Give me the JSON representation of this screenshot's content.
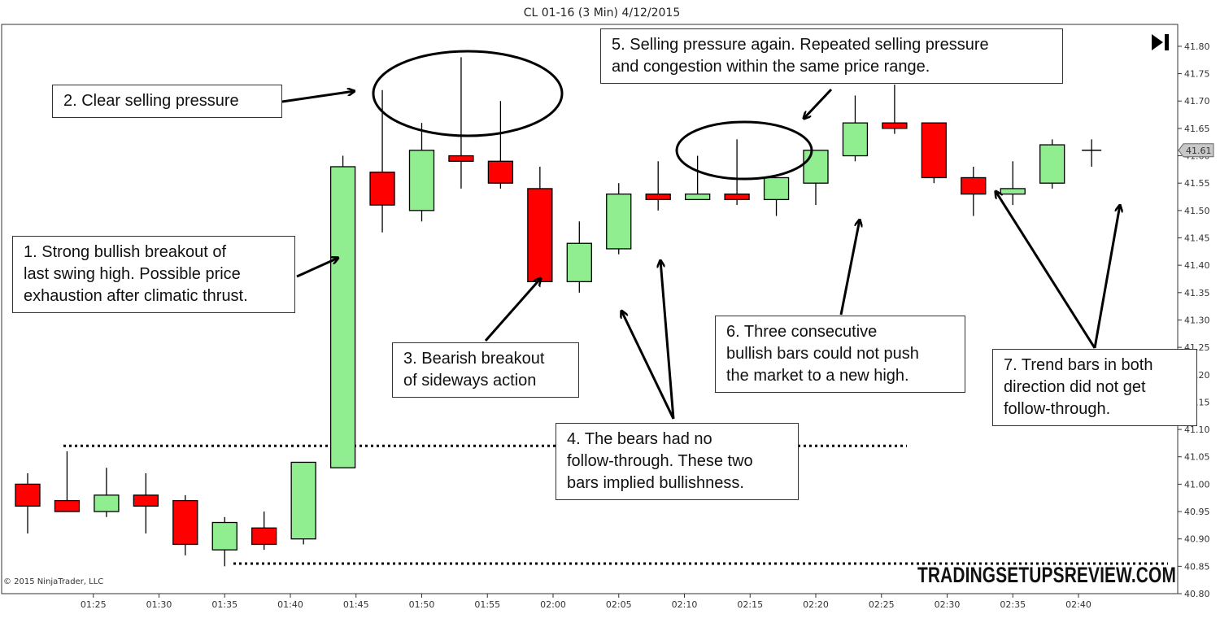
{
  "chart_data": {
    "type": "candlestick",
    "title": "CL 01-16 (3 Min)  4/12/2015",
    "ylim": [
      40.8,
      41.84
    ],
    "y_ticks": [
      "41.80",
      "41.75",
      "41.70",
      "41.65",
      "41.60",
      "41.55",
      "41.50",
      "41.45",
      "41.40",
      "41.35",
      "41.30",
      "41.25",
      "41.20",
      "41.15",
      "41.10",
      "41.05",
      "41.00",
      "40.95",
      "40.90",
      "40.85",
      "40.80"
    ],
    "x_ticks": [
      "01:25",
      "01:30",
      "01:35",
      "01:40",
      "01:45",
      "01:50",
      "01:55",
      "02:00",
      "02:05",
      "02:10",
      "02:15",
      "02:20",
      "02:25",
      "02:30",
      "02:35",
      "02:40"
    ],
    "candles": [
      {
        "time": "01:20",
        "open": 41.0,
        "high": 41.02,
        "low": 40.91,
        "close": 40.96
      },
      {
        "time": "01:23",
        "open": 40.97,
        "high": 41.06,
        "low": 40.95,
        "close": 40.95
      },
      {
        "time": "01:26",
        "open": 40.95,
        "high": 41.03,
        "low": 40.94,
        "close": 40.98
      },
      {
        "time": "01:29",
        "open": 40.98,
        "high": 41.02,
        "low": 40.91,
        "close": 40.96
      },
      {
        "time": "01:32",
        "open": 40.97,
        "high": 40.98,
        "low": 40.87,
        "close": 40.89
      },
      {
        "time": "01:35",
        "open": 40.88,
        "high": 40.94,
        "low": 40.85,
        "close": 40.93
      },
      {
        "time": "01:38",
        "open": 40.92,
        "high": 40.95,
        "low": 40.88,
        "close": 40.89
      },
      {
        "time": "01:41",
        "open": 40.9,
        "high": 41.04,
        "low": 40.89,
        "close": 41.04
      },
      {
        "time": "01:44",
        "open": 41.03,
        "high": 41.6,
        "low": 41.03,
        "close": 41.58
      },
      {
        "time": "01:47",
        "open": 41.57,
        "high": 41.72,
        "low": 41.46,
        "close": 41.51
      },
      {
        "time": "01:50",
        "open": 41.5,
        "high": 41.66,
        "low": 41.48,
        "close": 41.61
      },
      {
        "time": "01:53",
        "open": 41.6,
        "high": 41.78,
        "low": 41.54,
        "close": 41.59
      },
      {
        "time": "01:56",
        "open": 41.59,
        "high": 41.7,
        "low": 41.54,
        "close": 41.55
      },
      {
        "time": "01:59",
        "open": 41.54,
        "high": 41.58,
        "low": 41.36,
        "close": 41.37
      },
      {
        "time": "02:02",
        "open": 41.37,
        "high": 41.48,
        "low": 41.35,
        "close": 41.44
      },
      {
        "time": "02:05",
        "open": 41.43,
        "high": 41.55,
        "low": 41.42,
        "close": 41.53
      },
      {
        "time": "02:08",
        "open": 41.53,
        "high": 41.59,
        "low": 41.5,
        "close": 41.52
      },
      {
        "time": "02:11",
        "open": 41.52,
        "high": 41.6,
        "low": 41.52,
        "close": 41.53
      },
      {
        "time": "02:14",
        "open": 41.53,
        "high": 41.63,
        "low": 41.51,
        "close": 41.52
      },
      {
        "time": "02:17",
        "open": 41.52,
        "high": 41.56,
        "low": 41.49,
        "close": 41.56
      },
      {
        "time": "02:20",
        "open": 41.55,
        "high": 41.61,
        "low": 41.51,
        "close": 41.61
      },
      {
        "time": "02:23",
        "open": 41.6,
        "high": 41.71,
        "low": 41.59,
        "close": 41.66
      },
      {
        "time": "02:26",
        "open": 41.66,
        "high": 41.73,
        "low": 41.64,
        "close": 41.65
      },
      {
        "time": "02:29",
        "open": 41.66,
        "high": 41.66,
        "low": 41.55,
        "close": 41.56
      },
      {
        "time": "02:32",
        "open": 41.56,
        "high": 41.58,
        "low": 41.49,
        "close": 41.53
      },
      {
        "time": "02:35",
        "open": 41.53,
        "high": 41.59,
        "low": 41.51,
        "close": 41.54
      },
      {
        "time": "02:38",
        "open": 41.55,
        "high": 41.63,
        "low": 41.54,
        "close": 41.62
      },
      {
        "time": "02:41",
        "open": 41.61,
        "high": 41.63,
        "low": 41.58,
        "close": 41.61
      }
    ],
    "last_price": "41.61",
    "reference_lines": [
      41.07,
      40.855
    ],
    "grid": false,
    "colors": {
      "up": "#90ee90",
      "down": "#ff0000",
      "wick": "#000000"
    }
  },
  "annotations": [
    {
      "id": "1",
      "lines": [
        "1. Strong bullish  breakout of",
        "last swing high.  Possible price",
        "exhaustion after climatic thrust."
      ]
    },
    {
      "id": "2",
      "lines": [
        "2. Clear selling  pressure"
      ]
    },
    {
      "id": "3",
      "lines": [
        "3. Bearish breakout",
        "of sideways action"
      ]
    },
    {
      "id": "4",
      "lines": [
        "4. The bears had no",
        "follow-through.  These two",
        "bars implied  bullishness."
      ]
    },
    {
      "id": "5",
      "lines": [
        "5. Selling  pressure again.  Repeated selling pressure",
        "and congestion within  the same price range."
      ]
    },
    {
      "id": "6",
      "lines": [
        "6. Three consecutive",
        "bullish  bars could not push",
        "the market to a new high."
      ]
    },
    {
      "id": "7",
      "lines": [
        "7. Trend bars in both",
        "direction did not get",
        "follow-through."
      ]
    }
  ],
  "copyright": "© 2015 NinjaTrader, LLC",
  "watermark": "TRADINGSETUPSREVIEW.COM"
}
